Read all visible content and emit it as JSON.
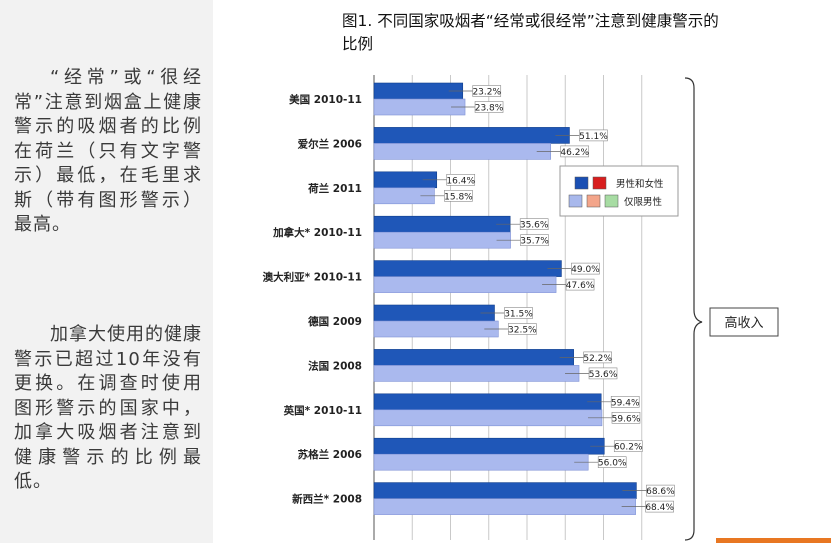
{
  "left_text": {
    "para1": "“经常”或“很经常”注意到烟盒上健康警示的吸烟者的比例在荷兰（只有文字警示）最低，在毛里求斯（带有图形警示）最高。",
    "para2": "加拿大使用的健康警示已超过10年没有更换。在调查时使用图形警示的国家中，加拿大吸烟者注意到健康警示的比例最低。"
  },
  "chart_data": {
    "type": "bar",
    "orientation": "horizontal",
    "title": "图1. 不同国家吸烟者“经常或很经常”注意到健康警示的比例",
    "categories": [
      "美国 2010-11",
      "爱尔兰 2006",
      "荷兰 2011",
      "加拿大* 2010-11",
      "澳大利亚* 2010-11",
      "德国 2009",
      "法国 2008",
      "英国* 2010-11",
      "苏格兰 2006",
      "新西兰* 2008"
    ],
    "series": [
      {
        "name": "男性和女性",
        "values": [
          23.2,
          51.1,
          16.4,
          35.6,
          49.0,
          31.5,
          52.2,
          59.4,
          60.2,
          68.6
        ]
      },
      {
        "name": "仅限男性",
        "values": [
          23.8,
          46.2,
          15.8,
          35.7,
          47.6,
          32.5,
          53.6,
          59.6,
          56.0,
          68.4
        ]
      }
    ],
    "value_labels": [
      [
        "23.2%",
        "23.8%"
      ],
      [
        "51.1%",
        "46.2%"
      ],
      [
        "16.4%",
        "15.8%"
      ],
      [
        "35.6%",
        "35.7%"
      ],
      [
        "49.0%",
        "47.6%"
      ],
      [
        "31.5%",
        "32.5%"
      ],
      [
        "52.2%",
        "53.6%"
      ],
      [
        "59.4%",
        "59.6%"
      ],
      [
        "60.2%",
        "56.0%"
      ],
      [
        "68.6%",
        "68.4%"
      ]
    ],
    "xlim": [
      0,
      80
    ],
    "grid": true,
    "legend": {
      "position": "right",
      "entries": [
        "男性和女性",
        "仅限男性"
      ],
      "swatches": [
        [
          "#1a4fb3",
          "#d81e1e"
        ],
        [
          "#a8b8ec",
          "#f3a58a",
          "#a7dca3"
        ]
      ]
    },
    "bracket_label": "高收入",
    "colors": {
      "series1": "#1f57b8",
      "series2": "#aab9ee",
      "grid": "#c9c9c9"
    }
  }
}
